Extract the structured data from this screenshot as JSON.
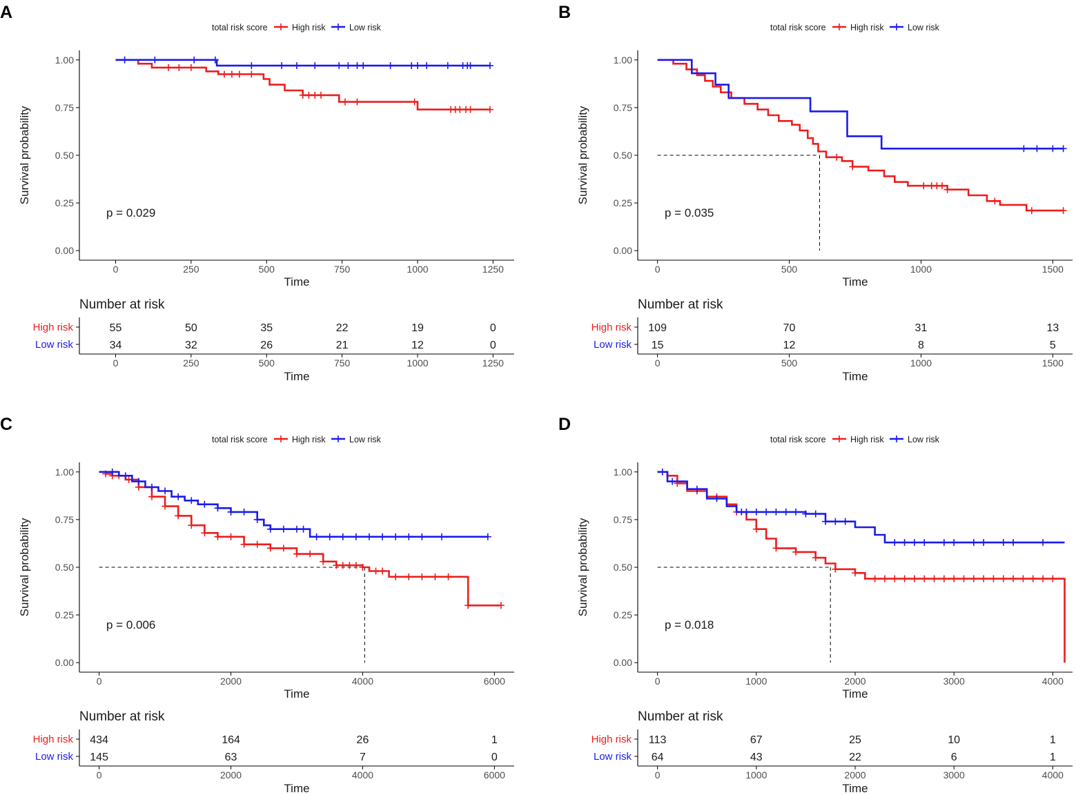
{
  "figure": {
    "panel_labels": [
      "A",
      "B",
      "C",
      "D"
    ]
  },
  "colors": {
    "high": "#ee1c1c",
    "low": "#1a1aee",
    "axis": "#000000",
    "text": "#1a1a1a",
    "tick_text": "#4d4d4d"
  },
  "legend": {
    "title": "total risk score",
    "entries": [
      "High risk",
      "Low risk"
    ]
  },
  "risk_table": {
    "title": "Number at risk",
    "row_labels": [
      "High risk",
      "Low risk"
    ]
  },
  "chart_data": [
    {
      "panel": "A",
      "type": "line",
      "title": "",
      "xlabel": "Time",
      "ylabel": "Survival probability",
      "xlim": [
        -120,
        1320
      ],
      "ylim": [
        -0.05,
        1.05
      ],
      "xticks": [
        0,
        250,
        500,
        750,
        1000,
        1250
      ],
      "yticks": [
        0,
        0.25,
        0.5,
        0.75,
        1
      ],
      "ytick_labels": [
        "0.00",
        "0.25",
        "0.50",
        "0.75",
        "1.00"
      ],
      "pvalue": "p = 0.029",
      "median_line": null,
      "series": [
        {
          "name": "High risk",
          "steps": [
            [
              0,
              1.0
            ],
            [
              75,
              0.98
            ],
            [
              120,
              0.96
            ],
            [
              250,
              0.96
            ],
            [
              300,
              0.94
            ],
            [
              340,
              0.925
            ],
            [
              490,
              0.9
            ],
            [
              510,
              0.87
            ],
            [
              560,
              0.84
            ],
            [
              620,
              0.815
            ],
            [
              740,
              0.78
            ],
            [
              1000,
              0.74
            ],
            [
              1240,
              0.74
            ]
          ],
          "censor_times": [
            175,
            210,
            250,
            360,
            385,
            410,
            450,
            620,
            640,
            660,
            680,
            760,
            800,
            990,
            1110,
            1125,
            1140,
            1160,
            1175,
            1240
          ]
        },
        {
          "name": "Low risk",
          "steps": [
            [
              0,
              1.0
            ],
            [
              335,
              0.97
            ],
            [
              1240,
              0.97
            ]
          ],
          "censor_times": [
            30,
            130,
            260,
            330,
            450,
            550,
            600,
            660,
            740,
            770,
            800,
            820,
            910,
            980,
            1000,
            1030,
            1100,
            1150,
            1165,
            1175,
            1240
          ]
        }
      ],
      "risk_table": {
        "times": [
          0,
          250,
          500,
          750,
          1000,
          1250
        ],
        "high": [
          55,
          50,
          35,
          22,
          19,
          0
        ],
        "low": [
          34,
          32,
          26,
          21,
          12,
          0
        ]
      }
    },
    {
      "panel": "B",
      "type": "line",
      "title": "",
      "xlabel": "Time",
      "ylabel": "Survival probability",
      "xlim": [
        -75,
        1575
      ],
      "ylim": [
        -0.05,
        1.05
      ],
      "xticks": [
        0,
        500,
        1000,
        1500
      ],
      "yticks": [
        0,
        0.25,
        0.5,
        0.75,
        1
      ],
      "ytick_labels": [
        "0.00",
        "0.25",
        "0.50",
        "0.75",
        "1.00"
      ],
      "pvalue": "p = 0.035",
      "median_line": 615,
      "series": [
        {
          "name": "High risk",
          "steps": [
            [
              0,
              1.0
            ],
            [
              60,
              0.98
            ],
            [
              110,
              0.95
            ],
            [
              150,
              0.92
            ],
            [
              180,
              0.89
            ],
            [
              210,
              0.86
            ],
            [
              240,
              0.83
            ],
            [
              280,
              0.8
            ],
            [
              330,
              0.77
            ],
            [
              380,
              0.74
            ],
            [
              420,
              0.71
            ],
            [
              460,
              0.68
            ],
            [
              510,
              0.66
            ],
            [
              540,
              0.63
            ],
            [
              570,
              0.59
            ],
            [
              590,
              0.56
            ],
            [
              610,
              0.52
            ],
            [
              640,
              0.49
            ],
            [
              700,
              0.47
            ],
            [
              740,
              0.44
            ],
            [
              800,
              0.42
            ],
            [
              860,
              0.39
            ],
            [
              900,
              0.36
            ],
            [
              950,
              0.34
            ],
            [
              1100,
              0.32
            ],
            [
              1180,
              0.29
            ],
            [
              1250,
              0.26
            ],
            [
              1300,
              0.24
            ],
            [
              1400,
              0.21
            ],
            [
              1540,
              0.21
            ]
          ],
          "censor_times": [
            680,
            740,
            1010,
            1040,
            1060,
            1080,
            1100,
            1280,
            1420,
            1540
          ]
        },
        {
          "name": "Low risk",
          "steps": [
            [
              0,
              1.0
            ],
            [
              130,
              0.93
            ],
            [
              220,
              0.87
            ],
            [
              270,
              0.8
            ],
            [
              580,
              0.73
            ],
            [
              720,
              0.6
            ],
            [
              850,
              0.535
            ],
            [
              1540,
              0.535
            ]
          ],
          "censor_times": [
            1390,
            1440,
            1500,
            1540
          ]
        }
      ],
      "risk_table": {
        "times": [
          0,
          500,
          1000,
          1500
        ],
        "high": [
          109,
          70,
          31,
          13
        ],
        "low": [
          15,
          12,
          8,
          5
        ]
      }
    },
    {
      "panel": "C",
      "type": "line",
      "title": "",
      "xlabel": "Time",
      "ylabel": "Survival probability",
      "xlim": [
        -300,
        6300
      ],
      "ylim": [
        -0.05,
        1.05
      ],
      "xticks": [
        0,
        2000,
        4000,
        6000
      ],
      "yticks": [
        0,
        0.25,
        0.5,
        0.75,
        1
      ],
      "ytick_labels": [
        "0.00",
        "0.25",
        "0.50",
        "0.75",
        "1.00"
      ],
      "pvalue": "p = 0.006",
      "median_line": 4030,
      "series": [
        {
          "name": "High risk",
          "steps": [
            [
              0,
              1.0
            ],
            [
              100,
              0.99
            ],
            [
              200,
              0.98
            ],
            [
              400,
              0.96
            ],
            [
              600,
              0.92
            ],
            [
              800,
              0.87
            ],
            [
              1000,
              0.82
            ],
            [
              1200,
              0.77
            ],
            [
              1400,
              0.72
            ],
            [
              1600,
              0.68
            ],
            [
              1800,
              0.66
            ],
            [
              2200,
              0.62
            ],
            [
              2600,
              0.6
            ],
            [
              3000,
              0.57
            ],
            [
              3400,
              0.53
            ],
            [
              3600,
              0.51
            ],
            [
              4000,
              0.5
            ],
            [
              4100,
              0.48
            ],
            [
              4400,
              0.45
            ],
            [
              5600,
              0.3
            ],
            [
              6100,
              0.3
            ]
          ],
          "censor_times": [
            100,
            200,
            300,
            450,
            600,
            800,
            1000,
            1200,
            1400,
            1600,
            1800,
            2000,
            2200,
            2400,
            2600,
            2800,
            3000,
            3200,
            3400,
            3600,
            3700,
            3800,
            3900,
            4000,
            4200,
            4300,
            4500,
            4700,
            4900,
            5100,
            5300,
            5600,
            6100
          ]
        },
        {
          "name": "Low risk",
          "steps": [
            [
              0,
              1.0
            ],
            [
              300,
              0.98
            ],
            [
              500,
              0.95
            ],
            [
              700,
              0.92
            ],
            [
              900,
              0.9
            ],
            [
              1100,
              0.87
            ],
            [
              1300,
              0.85
            ],
            [
              1500,
              0.83
            ],
            [
              1800,
              0.81
            ],
            [
              2000,
              0.79
            ],
            [
              2400,
              0.75
            ],
            [
              2500,
              0.72
            ],
            [
              2600,
              0.7
            ],
            [
              3200,
              0.66
            ],
            [
              5900,
              0.66
            ]
          ],
          "censor_times": [
            200,
            400,
            600,
            800,
            1000,
            1200,
            1400,
            1600,
            1800,
            2000,
            2200,
            2400,
            2600,
            2800,
            3000,
            3100,
            3300,
            3500,
            3700,
            3900,
            4100,
            4300,
            4500,
            4700,
            4900,
            5200,
            5900
          ]
        }
      ],
      "risk_table": {
        "times": [
          0,
          2000,
          4000,
          6000
        ],
        "high": [
          434,
          164,
          26,
          1
        ],
        "low": [
          145,
          63,
          7,
          0
        ]
      }
    },
    {
      "panel": "D",
      "type": "line",
      "title": "",
      "xlabel": "Time",
      "ylabel": "Survival probability",
      "xlim": [
        -200,
        4200
      ],
      "ylim": [
        -0.05,
        1.05
      ],
      "xticks": [
        0,
        1000,
        2000,
        3000,
        4000
      ],
      "yticks": [
        0,
        0.25,
        0.5,
        0.75,
        1
      ],
      "ytick_labels": [
        "0.00",
        "0.25",
        "0.50",
        "0.75",
        "1.00"
      ],
      "pvalue": "p = 0.018",
      "median_line": 1750,
      "series": [
        {
          "name": "High risk",
          "steps": [
            [
              0,
              1.0
            ],
            [
              100,
              0.98
            ],
            [
              200,
              0.94
            ],
            [
              300,
              0.9
            ],
            [
              500,
              0.87
            ],
            [
              700,
              0.83
            ],
            [
              800,
              0.79
            ],
            [
              900,
              0.75
            ],
            [
              1000,
              0.7
            ],
            [
              1100,
              0.65
            ],
            [
              1200,
              0.6
            ],
            [
              1400,
              0.58
            ],
            [
              1600,
              0.55
            ],
            [
              1700,
              0.52
            ],
            [
              1800,
              0.49
            ],
            [
              2000,
              0.47
            ],
            [
              2100,
              0.44
            ],
            [
              4100,
              0.44
            ],
            [
              4120,
              0.0
            ]
          ],
          "censor_times": [
            200,
            400,
            600,
            800,
            1000,
            1200,
            1400,
            1600,
            1800,
            2000,
            2200,
            2300,
            2400,
            2500,
            2600,
            2700,
            2800,
            2900,
            3000,
            3100,
            3200,
            3300,
            3400,
            3500,
            3600,
            3700,
            3800,
            3900,
            4000
          ]
        },
        {
          "name": "Low risk",
          "steps": [
            [
              0,
              1.0
            ],
            [
              100,
              0.95
            ],
            [
              300,
              0.91
            ],
            [
              500,
              0.86
            ],
            [
              700,
              0.82
            ],
            [
              800,
              0.79
            ],
            [
              1500,
              0.78
            ],
            [
              1700,
              0.74
            ],
            [
              2000,
              0.71
            ],
            [
              2200,
              0.67
            ],
            [
              2300,
              0.63
            ],
            [
              4120,
              0.63
            ]
          ],
          "censor_times": [
            50,
            150,
            400,
            600,
            850,
            900,
            1000,
            1100,
            1200,
            1300,
            1400,
            1500,
            1600,
            1700,
            1800,
            1900,
            2400,
            2500,
            2600,
            2700,
            2900,
            3000,
            3200,
            3300,
            3500,
            3600,
            3900
          ]
        }
      ],
      "risk_table": {
        "times": [
          0,
          1000,
          2000,
          3000,
          4000
        ],
        "high": [
          113,
          67,
          25,
          10,
          1
        ],
        "low": [
          64,
          43,
          22,
          6,
          1
        ]
      }
    }
  ]
}
